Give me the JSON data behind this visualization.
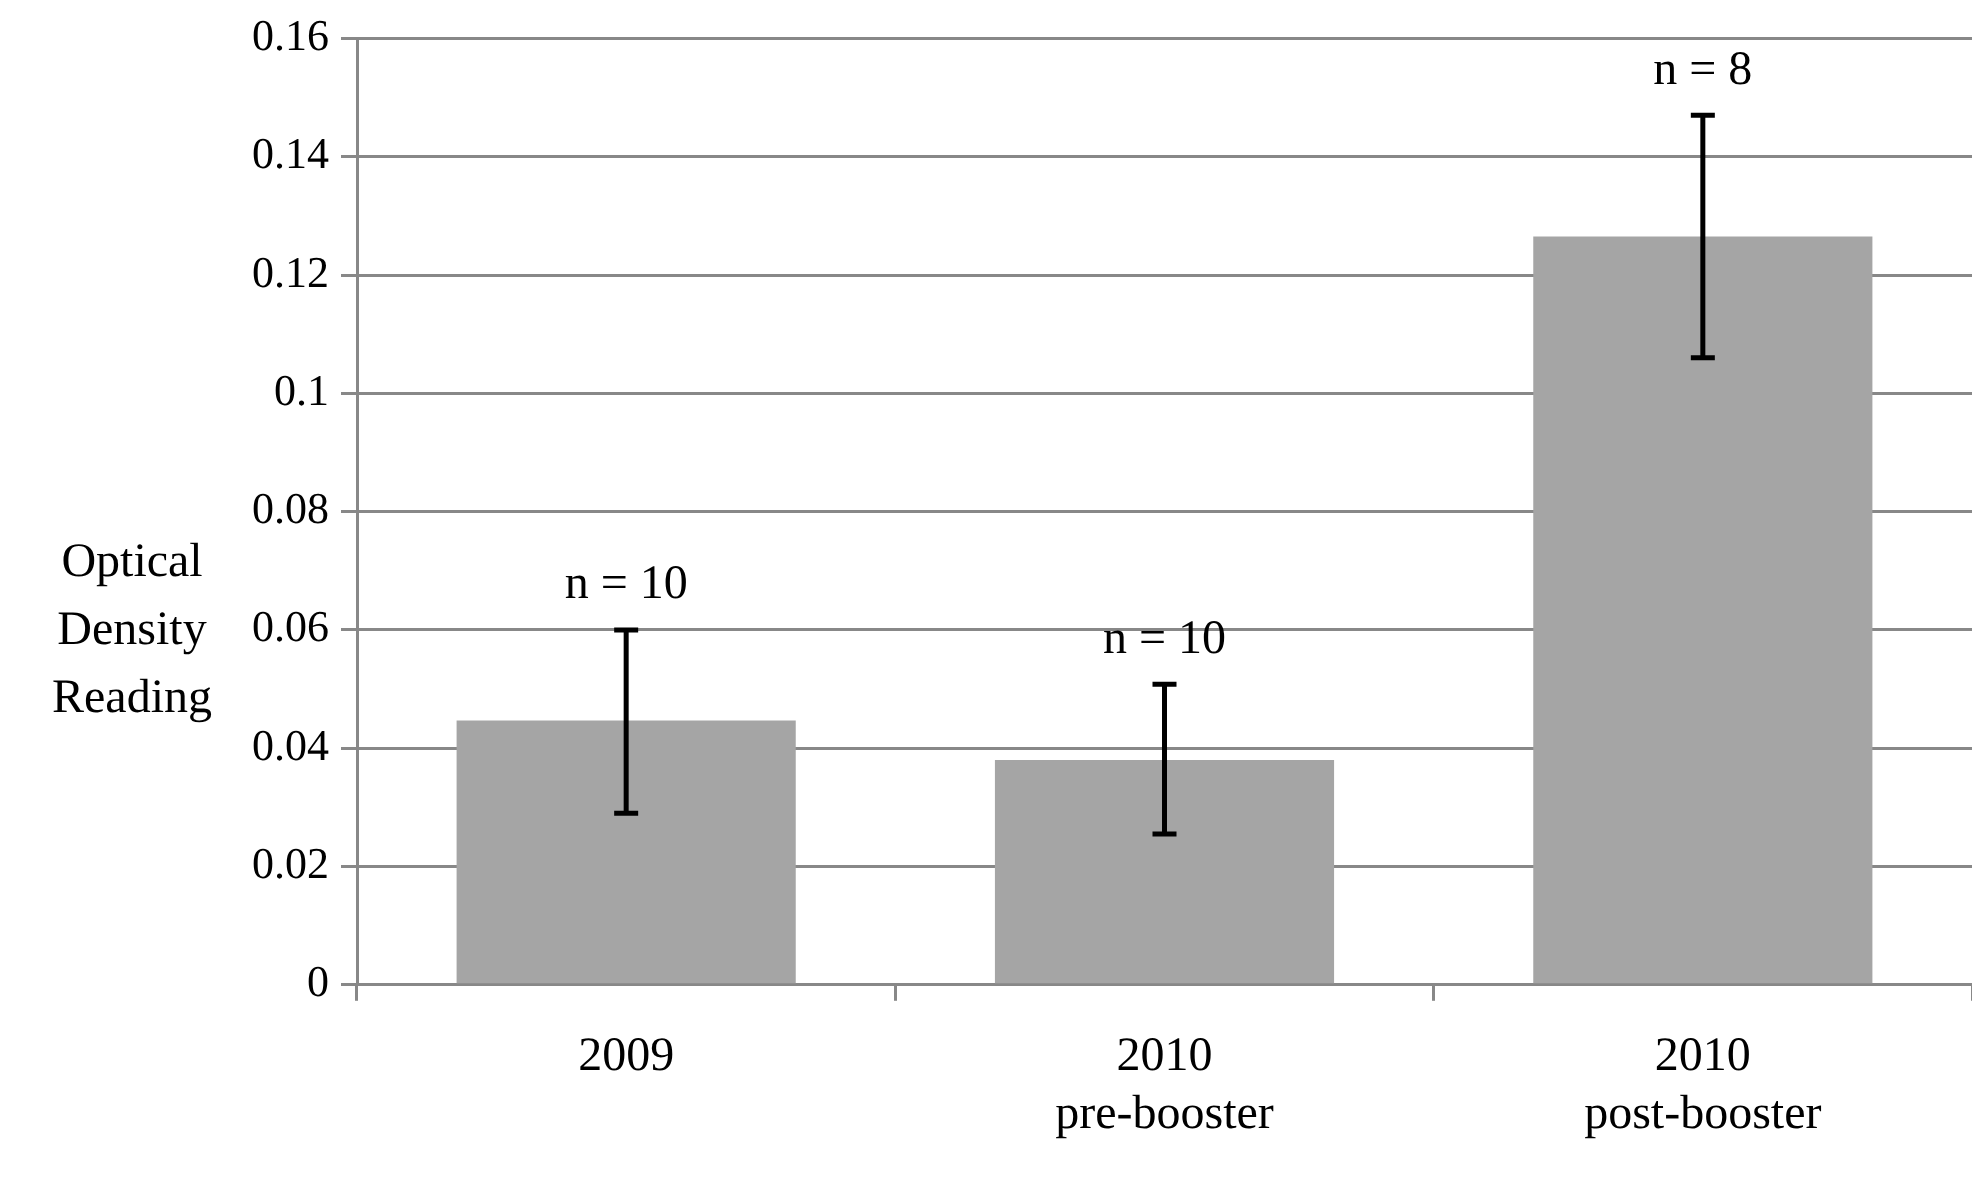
{
  "chart_data": {
    "type": "bar",
    "ylabel": "Optical Density Reading",
    "categories": [
      "2009",
      "2010\npre-booster",
      "2010\npost-booster"
    ],
    "values": [
      0.0447,
      0.038,
      0.1265
    ],
    "errors": [
      [
        0.029,
        0.06
      ],
      [
        0.0255,
        0.0508
      ],
      [
        0.106,
        0.147
      ]
    ],
    "color": "#a5a5a5",
    "ylim": [
      0,
      0.16
    ],
    "yticks": [
      0,
      0.02,
      0.04,
      0.06,
      0.08,
      0.1,
      0.12,
      0.14,
      0.16
    ],
    "grid": "y",
    "annotations": [
      "n = 10",
      "n = 10",
      "n = 8"
    ]
  }
}
